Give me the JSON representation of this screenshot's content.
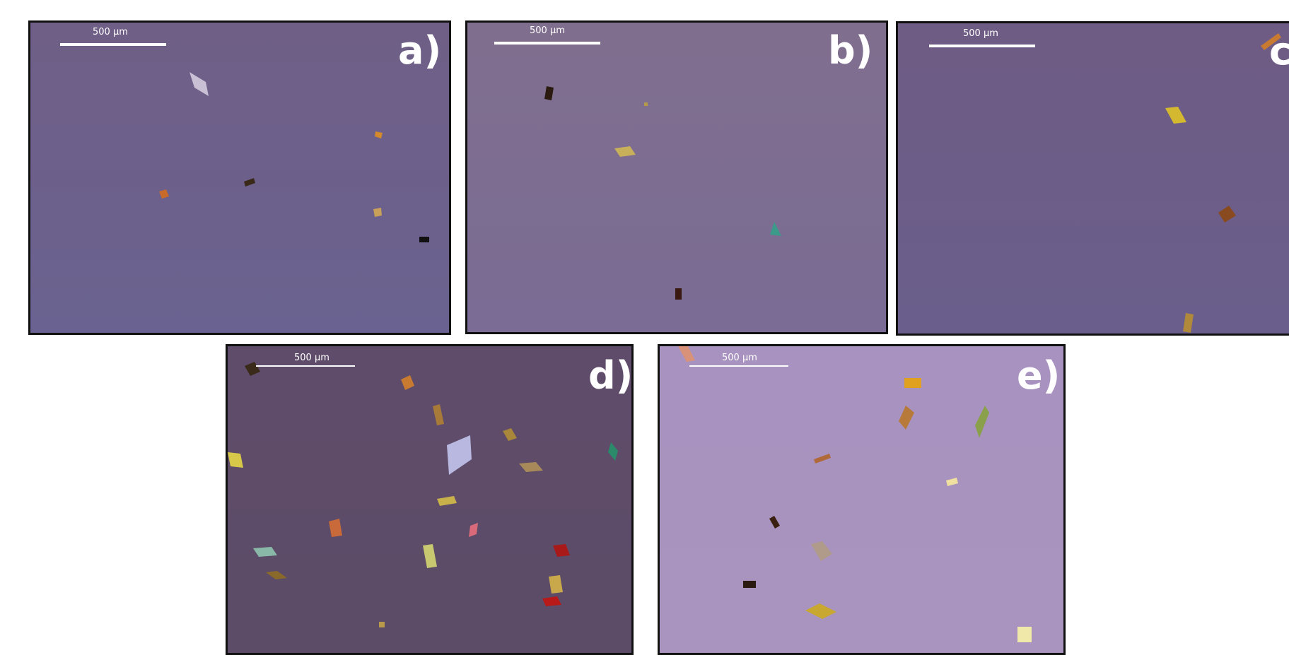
{
  "panels": [
    {
      "label": "a)",
      "scale_text": "500 µm"
    },
    {
      "label": "b)",
      "scale_text": "500 µm"
    },
    {
      "label": "c)",
      "scale_text": "500 µm"
    },
    {
      "label": "d)",
      "scale_text": "500 µm"
    },
    {
      "label": "e)",
      "scale_text": "500 µm"
    }
  ]
}
